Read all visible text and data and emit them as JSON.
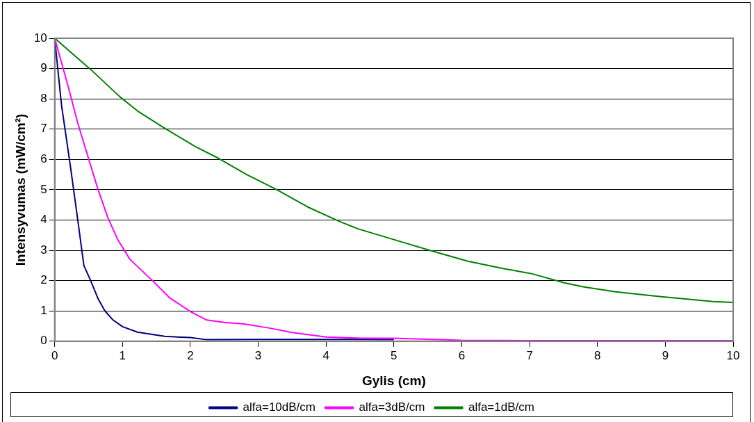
{
  "chart_data": {
    "type": "line",
    "xlabel": "Gylis (cm)",
    "ylabel": "Intensyvumas (mW/cm²)",
    "xlim": [
      0,
      10
    ],
    "xticks": [
      0,
      1,
      2,
      3,
      4,
      5,
      6,
      7,
      8,
      9,
      10
    ],
    "ylim": [
      0,
      10
    ],
    "yticks": [
      0,
      1,
      2,
      3,
      4,
      5,
      6,
      7,
      8,
      9,
      10
    ],
    "grid": "y",
    "legend": "bottom",
    "marker": "none",
    "line_style": "solid",
    "series": [
      {
        "name": "alfa=10dB/cm",
        "color": "#000080",
        "x": [
          0,
          0.1,
          0.23,
          0.34,
          0.43,
          0.53,
          0.64,
          0.74,
          0.86,
          1,
          1.22,
          1.62,
          2,
          2.24,
          3,
          4,
          5
        ],
        "values": [
          10,
          7.8,
          5.8,
          4,
          2.5,
          2,
          1.4,
          1,
          0.7,
          0.48,
          0.3,
          0.16,
          0.12,
          0.05,
          0.06,
          0.06,
          0.05
        ]
      },
      {
        "name": "alfa=3dB/cm",
        "color": "#ff00ff",
        "x": [
          0,
          0.2,
          0.34,
          0.53,
          0.64,
          0.78,
          0.93,
          1.11,
          1.44,
          1.69,
          2,
          2.24,
          2.5,
          2.79,
          3.15,
          3.5,
          4,
          4.5,
          5,
          6,
          7,
          8,
          9,
          10
        ],
        "values": [
          10,
          8.4,
          7.2,
          5.8,
          5,
          4.1,
          3.35,
          2.7,
          2,
          1.44,
          0.98,
          0.7,
          0.62,
          0.57,
          0.44,
          0.29,
          0.14,
          0.1,
          0.1,
          0.03,
          0.02,
          0.02,
          0.02,
          0.02
        ]
      },
      {
        "name": "alfa=1dB/cm",
        "color": "#008000",
        "x": [
          0,
          0.53,
          0.96,
          1.22,
          1.62,
          2.06,
          2.42,
          2.83,
          3.26,
          3.73,
          4.2,
          4.47,
          4.99,
          5.56,
          6.09,
          6.61,
          7.03,
          7.51,
          7.8,
          8.27,
          8.89,
          9.7,
          10
        ],
        "values": [
          10,
          8.97,
          8.07,
          7.6,
          7.03,
          6.44,
          6.03,
          5.5,
          5.02,
          4.43,
          3.95,
          3.71,
          3.36,
          2.98,
          2.64,
          2.4,
          2.23,
          1.93,
          1.79,
          1.63,
          1.48,
          1.31,
          1.28
        ]
      }
    ]
  }
}
